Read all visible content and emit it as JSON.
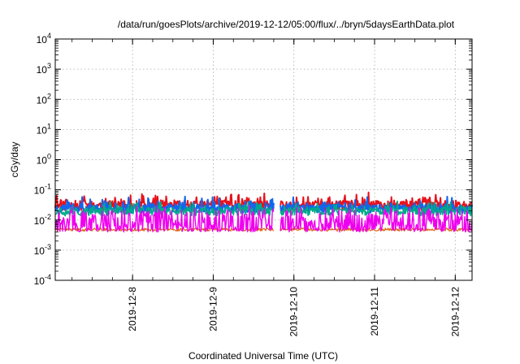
{
  "chart_data": {
    "type": "line",
    "title": "/data/run/goesPlots/archive/2019-12-12/05:00/flux/../bryn/5daysEarthData.plot",
    "xlabel": "Coordinated Universal Time (UTC)",
    "ylabel": "cGy/day",
    "y_scale": "log",
    "ylim": [
      0.0001,
      10000
    ],
    "xlim": [
      "2019-12-07T01:00",
      "2019-12-12T05:00"
    ],
    "grid": true,
    "legend": "none",
    "y_ticks": [
      {
        "base": "10",
        "exp": "-4",
        "value": 0.0001
      },
      {
        "base": "10",
        "exp": "-3",
        "value": 0.001
      },
      {
        "base": "10",
        "exp": "-2",
        "value": 0.01
      },
      {
        "base": "10",
        "exp": "-1",
        "value": 0.1
      },
      {
        "base": "10",
        "exp": "0",
        "value": 1
      },
      {
        "base": "10",
        "exp": "1",
        "value": 10
      },
      {
        "base": "10",
        "exp": "2",
        "value": 100
      },
      {
        "base": "10",
        "exp": "3",
        "value": 1000
      },
      {
        "base": "10",
        "exp": "4",
        "value": 10000
      }
    ],
    "x_ticks": [
      {
        "label": "2019-12-8",
        "value": "2019-12-08T00:00"
      },
      {
        "label": "2019-12-9",
        "value": "2019-12-09T00:00"
      },
      {
        "label": "2019-12-10",
        "value": "2019-12-10T00:00"
      },
      {
        "label": "2019-12-11",
        "value": "2019-12-11T00:00"
      },
      {
        "label": "2019-12-12",
        "value": "2019-12-12T00:00"
      }
    ],
    "gaps": [
      {
        "start": "2019-12-09T18:00",
        "end": "2019-12-09T20:00"
      }
    ],
    "series": [
      {
        "color": "#e8111b",
        "base": 0.03,
        "jitter": 0.32,
        "spike_amp": 0.3,
        "seed": 11,
        "width": 2
      },
      {
        "color": "#1166ee",
        "base": 0.024,
        "jitter": 0.3,
        "spike_amp": 0.28,
        "seed": 23,
        "width": 2
      },
      {
        "color": "#00aa88",
        "base": 0.019,
        "jitter": 0.28,
        "spike_amp": 0.25,
        "seed": 37,
        "width": 1.6
      },
      {
        "color": "#dd6611",
        "base": 0.0048,
        "jitter": 0.1,
        "spike_amp": 0.0,
        "seed": 41,
        "width": 1.2
      },
      {
        "color": "#ee00ee",
        "base": 0.0046,
        "jitter": 0.12,
        "spike_amp": 0.78,
        "seed": 53,
        "width": 1.4
      }
    ]
  }
}
